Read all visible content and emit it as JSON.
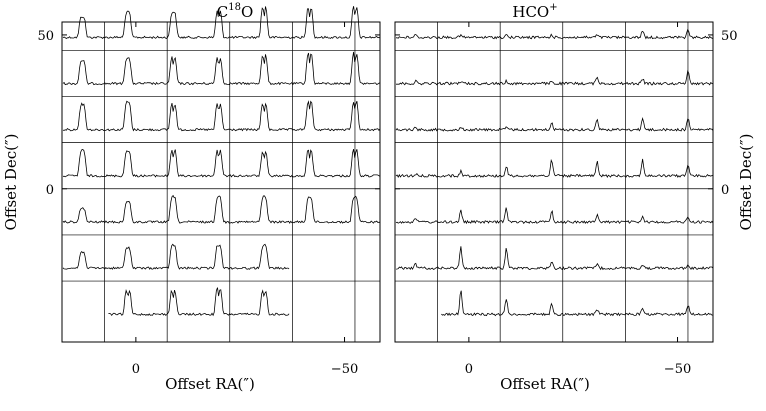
{
  "chart_data": [
    {
      "type": "line",
      "panel": "left",
      "title": "C",
      "title_sup": "18",
      "title_tail": "O",
      "xlabel": "Offset RA(″)",
      "ylabel": "Offset Dec(″)",
      "x_ticks": [
        "0",
        "−50"
      ],
      "x_tick_values": [
        0,
        -50
      ],
      "y_ticks": [
        "0",
        "50"
      ],
      "y_tick_values": [
        0,
        50
      ],
      "xlim": [
        17.7,
        -58.5
      ],
      "ylim": [
        -49.8,
        54.2
      ],
      "grid": true,
      "grid_x_values": [
        7.5,
        -7.5,
        -22.5,
        -37.5,
        -52.5
      ],
      "grid_y_values": [
        45,
        30,
        15,
        0,
        -15,
        -30
      ],
      "grid_note": "7 rows x 7 columns of spectra, 15″ spacing; bottom rows partially mapped",
      "rows": [
        {
          "dec": 52.5,
          "n": 7,
          "double": [
            0,
            0,
            0,
            1,
            1,
            1,
            1
          ],
          "amp": [
            0.45,
            0.55,
            0.55,
            0.6,
            0.7,
            0.7,
            0.7
          ],
          "start": 0
        },
        {
          "dec": 37.5,
          "n": 7,
          "double": [
            0,
            0,
            1,
            1,
            1,
            1,
            1
          ],
          "amp": [
            0.5,
            0.55,
            0.6,
            0.6,
            0.65,
            0.7,
            0.7
          ],
          "start": 0
        },
        {
          "dec": 22.5,
          "n": 7,
          "double": [
            0,
            0,
            1,
            1,
            1,
            1,
            1
          ],
          "amp": [
            0.55,
            0.6,
            0.6,
            0.6,
            0.6,
            0.65,
            0.65
          ],
          "start": 0
        },
        {
          "dec": 7.5,
          "n": 7,
          "double": [
            0,
            0,
            1,
            1,
            1,
            1,
            1
          ],
          "amp": [
            0.55,
            0.55,
            0.6,
            0.6,
            0.55,
            0.6,
            0.6
          ],
          "start": 0
        },
        {
          "dec": -7.5,
          "n": 7,
          "double": [
            0,
            0,
            0,
            0,
            0,
            0,
            0
          ],
          "amp": [
            0.3,
            0.45,
            0.55,
            0.55,
            0.55,
            0.55,
            0.55
          ],
          "start": 0
        },
        {
          "dec": -22.5,
          "n": 5,
          "double": [
            0,
            0,
            0,
            0,
            0
          ],
          "amp": [
            0.35,
            0.45,
            0.5,
            0.5,
            0.5
          ],
          "start": 0
        },
        {
          "dec": -37.5,
          "n": 4,
          "double": [
            1,
            1,
            1,
            1
          ],
          "amp": [
            0.55,
            0.55,
            0.6,
            0.55
          ],
          "start": 1
        }
      ]
    },
    {
      "type": "line",
      "panel": "right",
      "title": "HCO",
      "title_sup": "+",
      "title_tail": "",
      "xlabel": "Offset RA(″)",
      "ylabel": "Offset Dec(″)",
      "x_ticks": [
        "0",
        "−50"
      ],
      "x_tick_values": [
        0,
        -50
      ],
      "y_ticks": [
        "0",
        "50"
      ],
      "y_tick_values": [
        0,
        50
      ],
      "xlim": [
        17.7,
        -58.5
      ],
      "ylim": [
        -49.8,
        54.2
      ],
      "grid": true,
      "grid_x_values": [
        7.5,
        -7.5,
        -22.5,
        -37.5,
        -52.5
      ],
      "grid_y_values": [
        45,
        30,
        15,
        0,
        -15,
        -30
      ],
      "grid_note": "7 rows x 7 columns of spectra, 15″ spacing",
      "rows": [
        {
          "dec": 52.5,
          "n": 7,
          "amp": [
            0.05,
            0.05,
            0.05,
            0.05,
            0.05,
            0.15,
            0.15
          ],
          "start": 0
        },
        {
          "dec": 37.5,
          "n": 7,
          "amp": [
            0.05,
            0.05,
            0.05,
            0.05,
            0.15,
            0.1,
            0.3
          ],
          "start": 0
        },
        {
          "dec": 22.5,
          "n": 7,
          "amp": [
            0.05,
            0.05,
            0.05,
            0.15,
            0.25,
            0.25,
            0.25
          ],
          "start": 0
        },
        {
          "dec": 7.5,
          "n": 7,
          "amp": [
            0.05,
            0.1,
            0.2,
            0.35,
            0.3,
            0.35,
            0.25
          ],
          "start": 0
        },
        {
          "dec": -7.5,
          "n": 7,
          "amp": [
            0.1,
            0.25,
            0.3,
            0.25,
            0.15,
            0.1,
            0.1
          ],
          "start": 0
        },
        {
          "dec": -22.5,
          "n": 7,
          "amp": [
            0.1,
            0.45,
            0.45,
            0.15,
            0.1,
            0.05,
            0.05
          ],
          "start": 0
        },
        {
          "dec": -37.5,
          "n": 6,
          "amp": [
            0.55,
            0.35,
            0.25,
            0.1,
            0.15,
            0.2
          ],
          "start": 1
        }
      ]
    }
  ]
}
